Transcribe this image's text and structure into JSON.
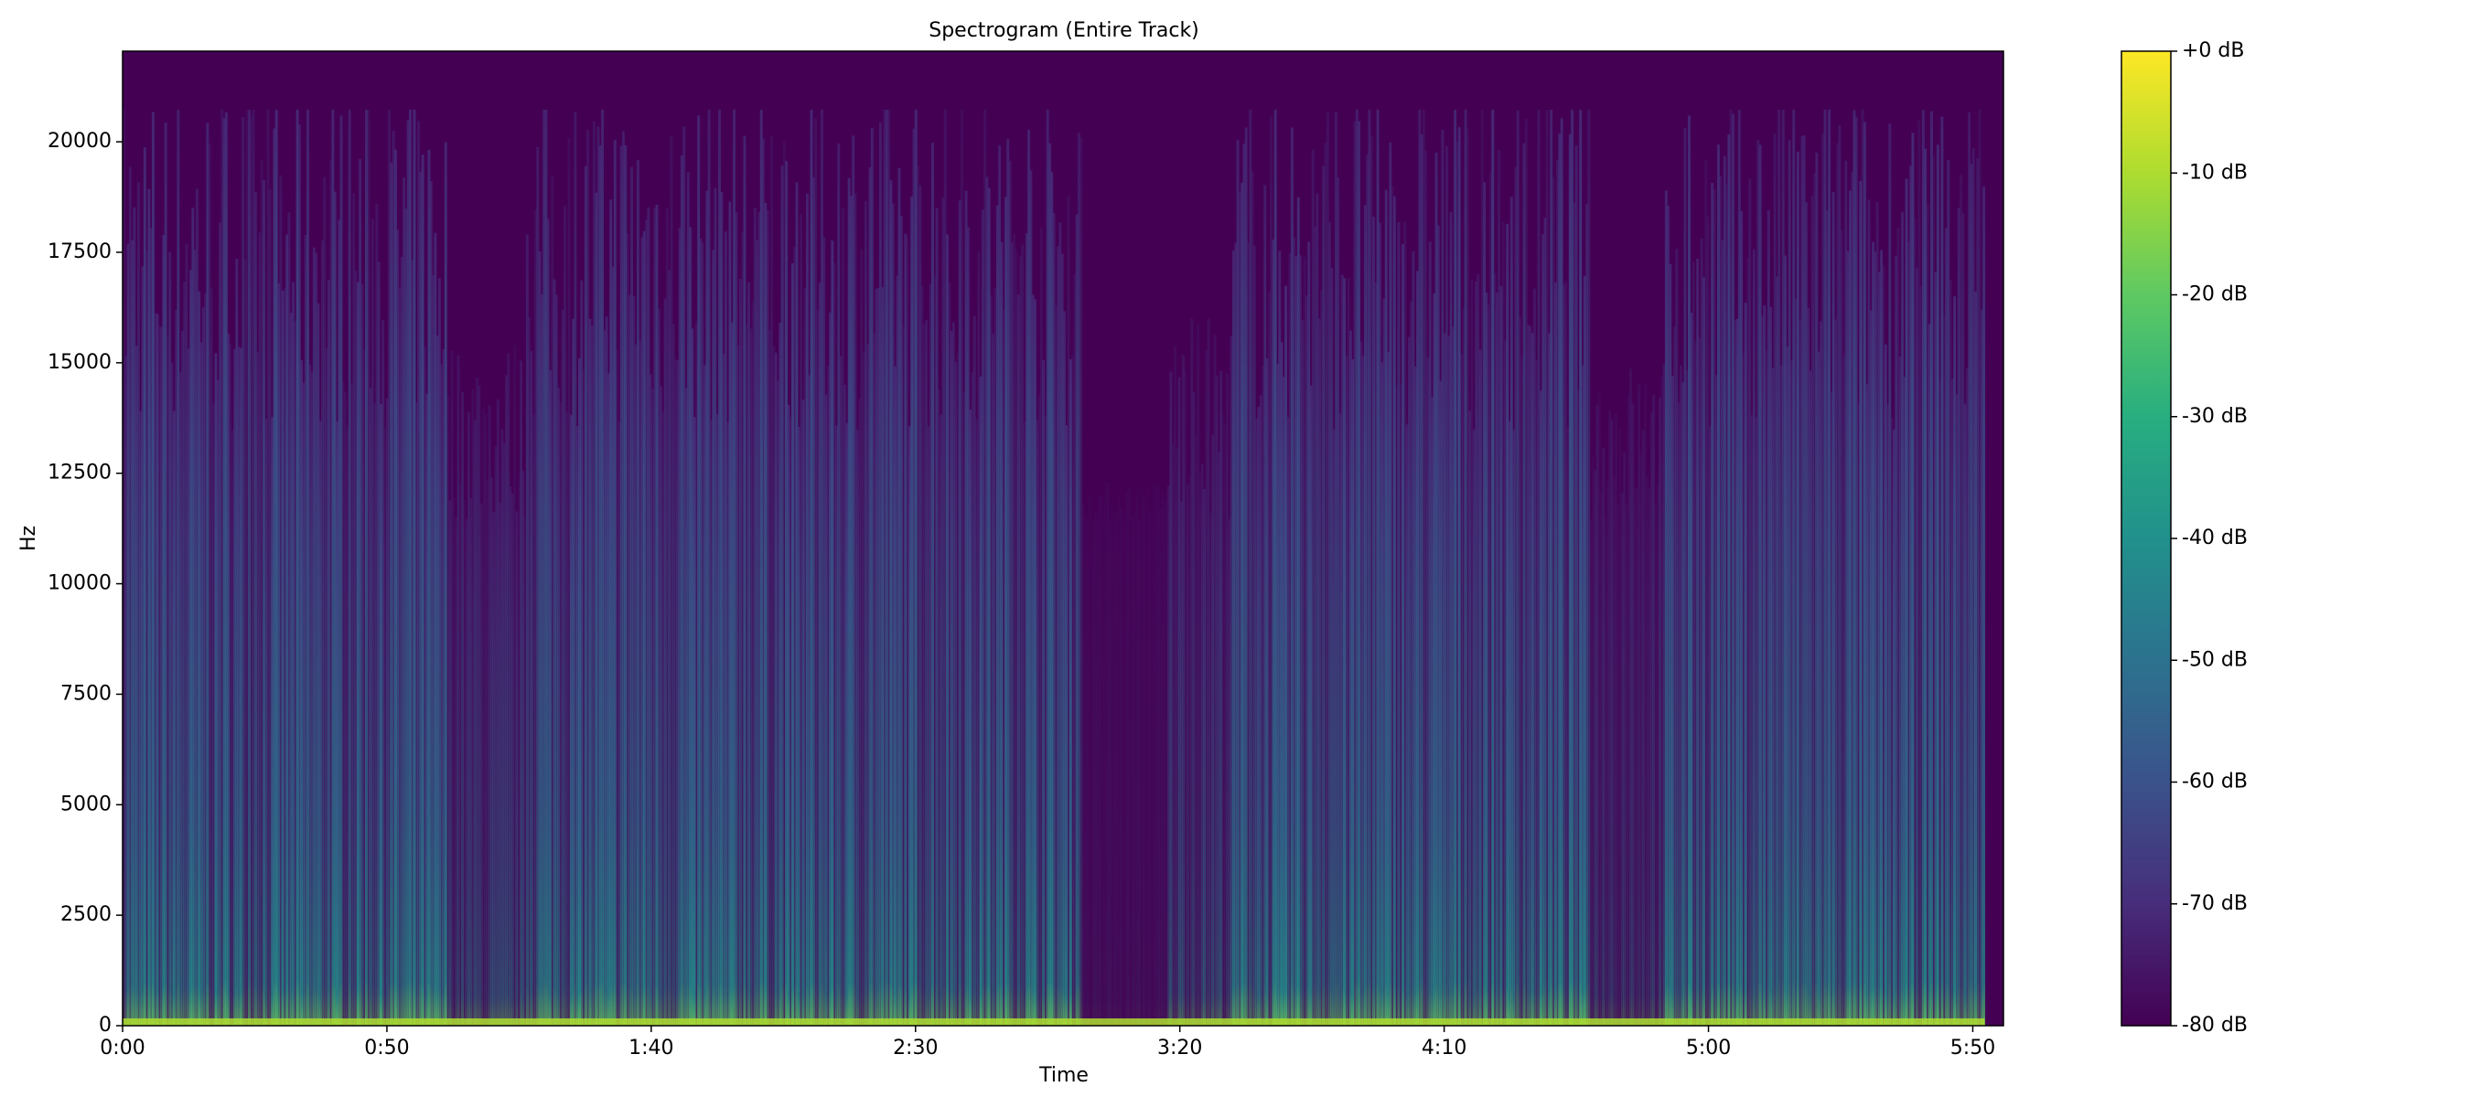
{
  "chart_data": {
    "type": "spectrogram",
    "title": "Spectrogram (Entire Track)",
    "x_label": "Time",
    "y_label": "Hz",
    "xlim": [
      0,
      355.8
    ],
    "ylim": [
      0,
      22050
    ],
    "xticks": [
      {
        "value": 0,
        "label": "0:00"
      },
      {
        "value": 50,
        "label": "0:50"
      },
      {
        "value": 100,
        "label": "1:40"
      },
      {
        "value": 150,
        "label": "2:30"
      },
      {
        "value": 200,
        "label": "3:20"
      },
      {
        "value": 250,
        "label": "4:10"
      },
      {
        "value": 300,
        "label": "5:00"
      },
      {
        "value": 350,
        "label": "5:50"
      }
    ],
    "yticks": [
      0,
      2500,
      5000,
      7500,
      10000,
      12500,
      15000,
      17500,
      20000
    ],
    "colormap": "viridis",
    "clim": [
      -80,
      0
    ],
    "cticks": [
      {
        "value": 0,
        "label": "+0 dB"
      },
      {
        "value": -10,
        "label": "-10 dB"
      },
      {
        "value": -20,
        "label": "-20 dB"
      },
      {
        "value": -30,
        "label": "-30 dB"
      },
      {
        "value": -40,
        "label": "-40 dB"
      },
      {
        "value": -50,
        "label": "-50 dB"
      },
      {
        "value": -60,
        "label": "-60 dB"
      },
      {
        "value": -70,
        "label": "-70 dB"
      },
      {
        "value": -80,
        "label": "-80 dB"
      }
    ]
  }
}
